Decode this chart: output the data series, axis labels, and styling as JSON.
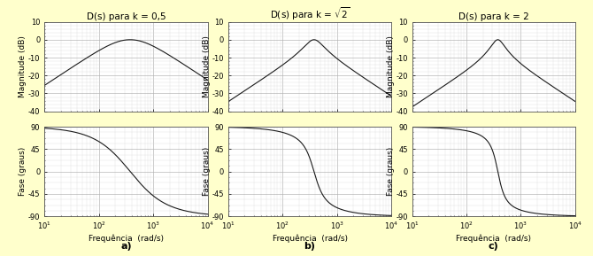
{
  "subplot_labels": [
    "a)",
    "b)",
    "c)"
  ],
  "omega0": 377,
  "k_values": [
    0.5,
    1.4142135623730951,
    2.0
  ],
  "freq_range": [
    10,
    10000
  ],
  "mag_ylim": [
    -40,
    10
  ],
  "mag_yticks": [
    -40,
    -30,
    -20,
    -10,
    0,
    10
  ],
  "phase_ylim": [
    -90,
    90
  ],
  "phase_yticks": [
    -90,
    -45,
    0,
    45,
    90
  ],
  "mag_ylabel": "Magnitude (dB)",
  "phase_ylabel": "Fase (graus)",
  "xlabel": "Frequência  (rad/s)",
  "line_color": "#1a1a1a",
  "grid_major_color": "#b0b0b0",
  "grid_minor_color": "#d8d8d8",
  "bg_color": "#ffffcc",
  "axes_bg_color": "#ffffff",
  "title_fontsize": 7.5,
  "label_fontsize": 6.5,
  "tick_fontsize": 6.0
}
